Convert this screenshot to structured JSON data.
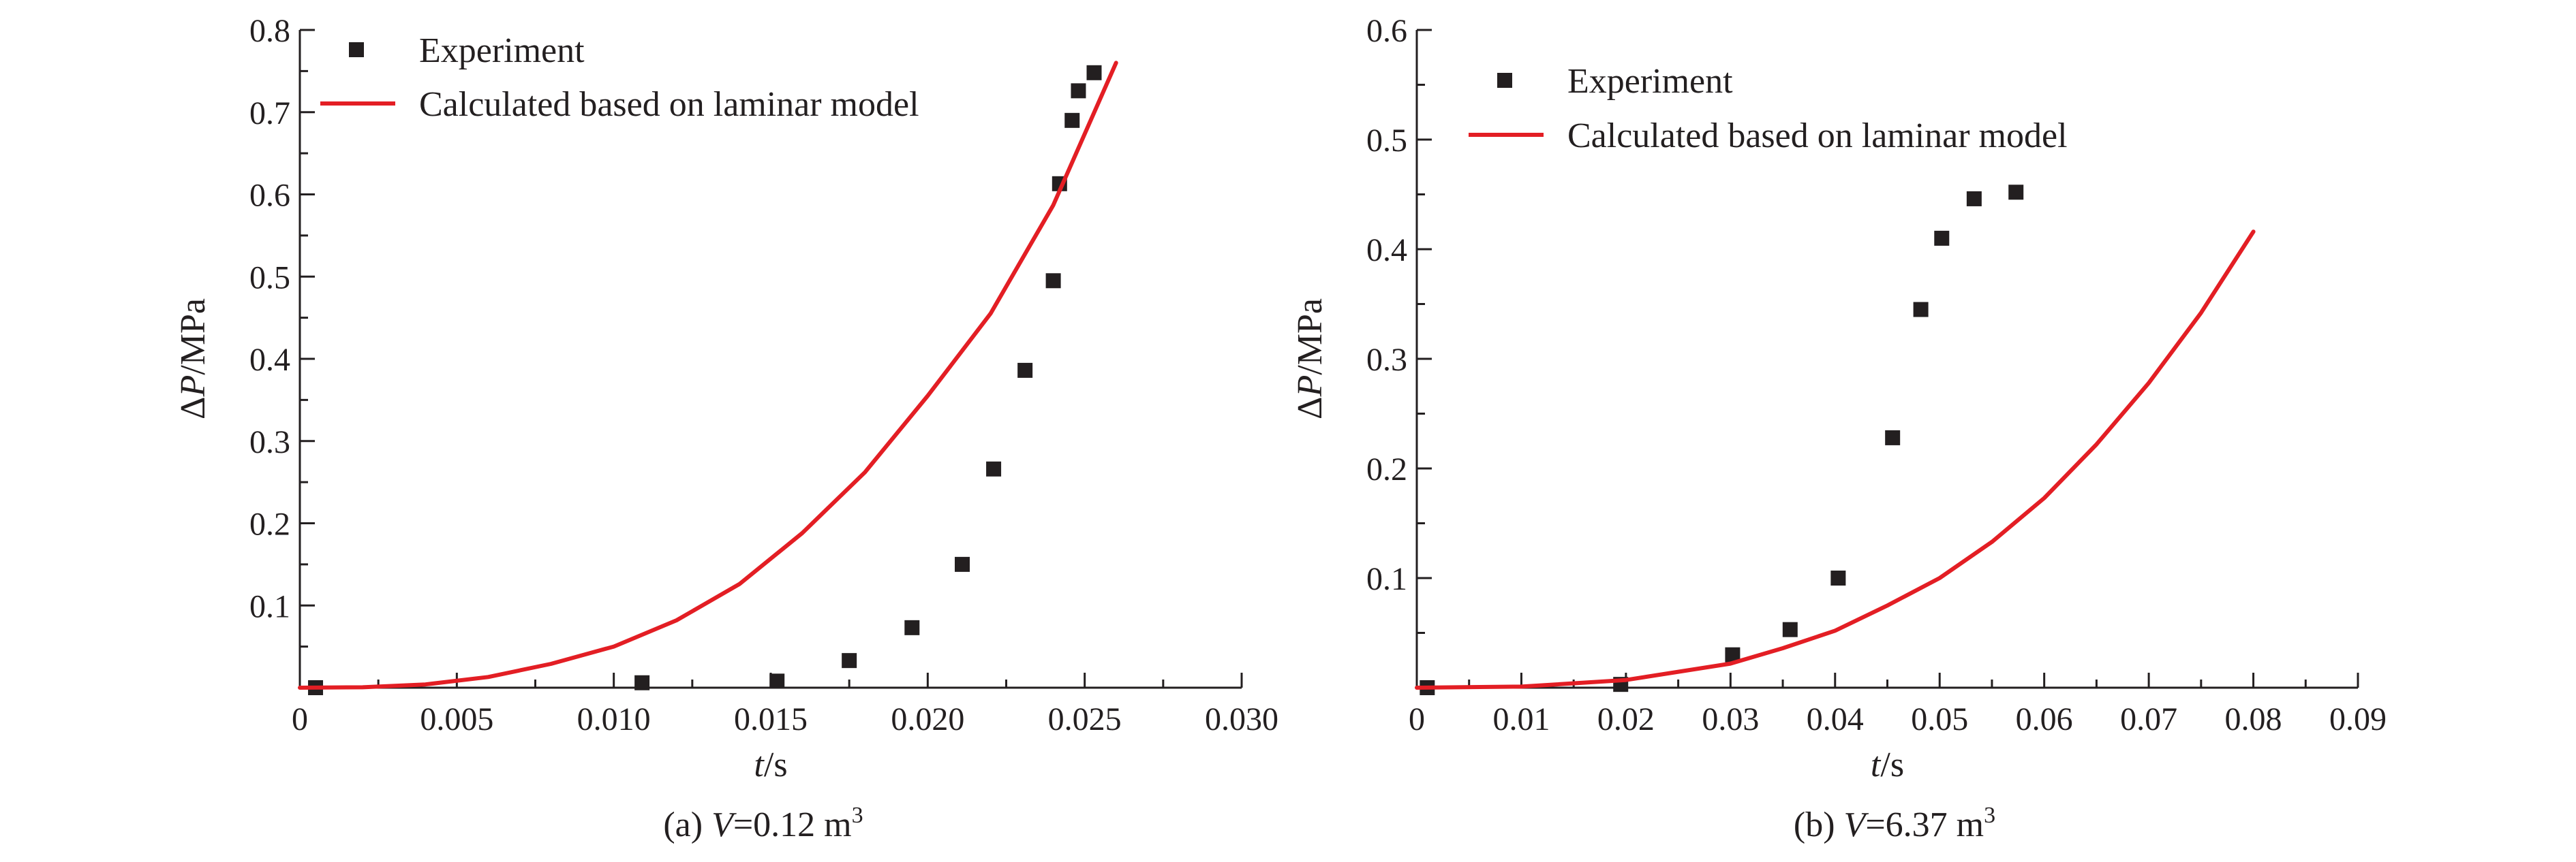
{
  "chart_data": [
    {
      "type": "scatter",
      "xlabel_italic": "t",
      "xlabel_unit": "/s",
      "ylabel_symbol": "Δ",
      "ylabel_italic": "P",
      "ylabel_unit": "/MPa",
      "caption_prefix": "(a) ",
      "caption_var": "V",
      "caption_value": "=0.12 m",
      "caption_sup": "3",
      "xlim": [
        0,
        0.03
      ],
      "ylim": [
        0,
        0.8
      ],
      "xticks": [
        0,
        0.005,
        0.01,
        0.015,
        0.02,
        0.025,
        0.03
      ],
      "xtick_labels": [
        "0",
        "0.005",
        "0.010",
        "0.015",
        "0.020",
        "0.025",
        "0.030"
      ],
      "yticks": [
        0.1,
        0.2,
        0.3,
        0.4,
        0.5,
        0.6,
        0.7,
        0.8
      ],
      "ytick_labels": [
        "0.1",
        "0.2",
        "0.3",
        "0.4",
        "0.5",
        "0.6",
        "0.7",
        "0.8"
      ],
      "legend_position": "top-left",
      "series": [
        {
          "name": "Experiment",
          "kind": "scatter",
          "color": "#231f20",
          "points": [
            [
              0.0005,
              0.0
            ],
            [
              0.0109,
              0.006
            ],
            [
              0.0152,
              0.008
            ],
            [
              0.0175,
              0.033
            ],
            [
              0.0195,
              0.073
            ],
            [
              0.0211,
              0.15
            ],
            [
              0.0221,
              0.266
            ],
            [
              0.0231,
              0.386
            ],
            [
              0.024,
              0.495
            ],
            [
              0.0242,
              0.613
            ],
            [
              0.0246,
              0.69
            ],
            [
              0.0248,
              0.726
            ],
            [
              0.0253,
              0.748
            ]
          ]
        },
        {
          "name": "Calculated based on laminar model",
          "kind": "line",
          "color": "#e31e24",
          "points": [
            [
              0.0,
              0.0
            ],
            [
              0.002,
              0.0005
            ],
            [
              0.004,
              0.004
            ],
            [
              0.006,
              0.013
            ],
            [
              0.008,
              0.029
            ],
            [
              0.01,
              0.05
            ],
            [
              0.012,
              0.082
            ],
            [
              0.014,
              0.126
            ],
            [
              0.016,
              0.188
            ],
            [
              0.018,
              0.262
            ],
            [
              0.02,
              0.355
            ],
            [
              0.022,
              0.455
            ],
            [
              0.024,
              0.587
            ],
            [
              0.026,
              0.76
            ]
          ]
        }
      ]
    },
    {
      "type": "scatter",
      "xlabel_italic": "t",
      "xlabel_unit": "/s",
      "ylabel_symbol": "Δ",
      "ylabel_italic": "P",
      "ylabel_unit": "/MPa",
      "caption_prefix": "(b) ",
      "caption_var": "V",
      "caption_value": "=6.37 m",
      "caption_sup": "3",
      "xlim": [
        0,
        0.09
      ],
      "ylim": [
        0,
        0.6
      ],
      "xticks": [
        0,
        0.01,
        0.02,
        0.03,
        0.04,
        0.05,
        0.06,
        0.07,
        0.08,
        0.09
      ],
      "xtick_labels": [
        "0",
        "0.01",
        "0.02",
        "0.03",
        "0.04",
        "0.05",
        "0.06",
        "0.07",
        "0.08",
        "0.09"
      ],
      "yticks": [
        0.1,
        0.2,
        0.3,
        0.4,
        0.5,
        0.6
      ],
      "ytick_labels": [
        "0.1",
        "0.2",
        "0.3",
        "0.4",
        "0.5",
        "0.6"
      ],
      "legend_position": "top-left",
      "series": [
        {
          "name": "Experiment",
          "kind": "scatter",
          "color": "#231f20",
          "points": [
            [
              0.001,
              0.0
            ],
            [
              0.0195,
              0.003
            ],
            [
              0.0302,
              0.03
            ],
            [
              0.0357,
              0.053
            ],
            [
              0.0403,
              0.1
            ],
            [
              0.0455,
              0.228
            ],
            [
              0.0482,
              0.345
            ],
            [
              0.0502,
              0.41
            ],
            [
              0.0533,
              0.446
            ],
            [
              0.0573,
              0.452
            ]
          ]
        },
        {
          "name": "Calculated based on laminar model",
          "kind": "line",
          "color": "#e31e24",
          "points": [
            [
              0.0,
              0.0
            ],
            [
              0.01,
              0.001
            ],
            [
              0.02,
              0.007
            ],
            [
              0.03,
              0.022
            ],
            [
              0.035,
              0.036
            ],
            [
              0.04,
              0.052
            ],
            [
              0.045,
              0.075
            ],
            [
              0.05,
              0.1
            ],
            [
              0.055,
              0.133
            ],
            [
              0.06,
              0.173
            ],
            [
              0.065,
              0.222
            ],
            [
              0.07,
              0.278
            ],
            [
              0.075,
              0.342
            ],
            [
              0.08,
              0.416
            ]
          ]
        }
      ]
    }
  ]
}
